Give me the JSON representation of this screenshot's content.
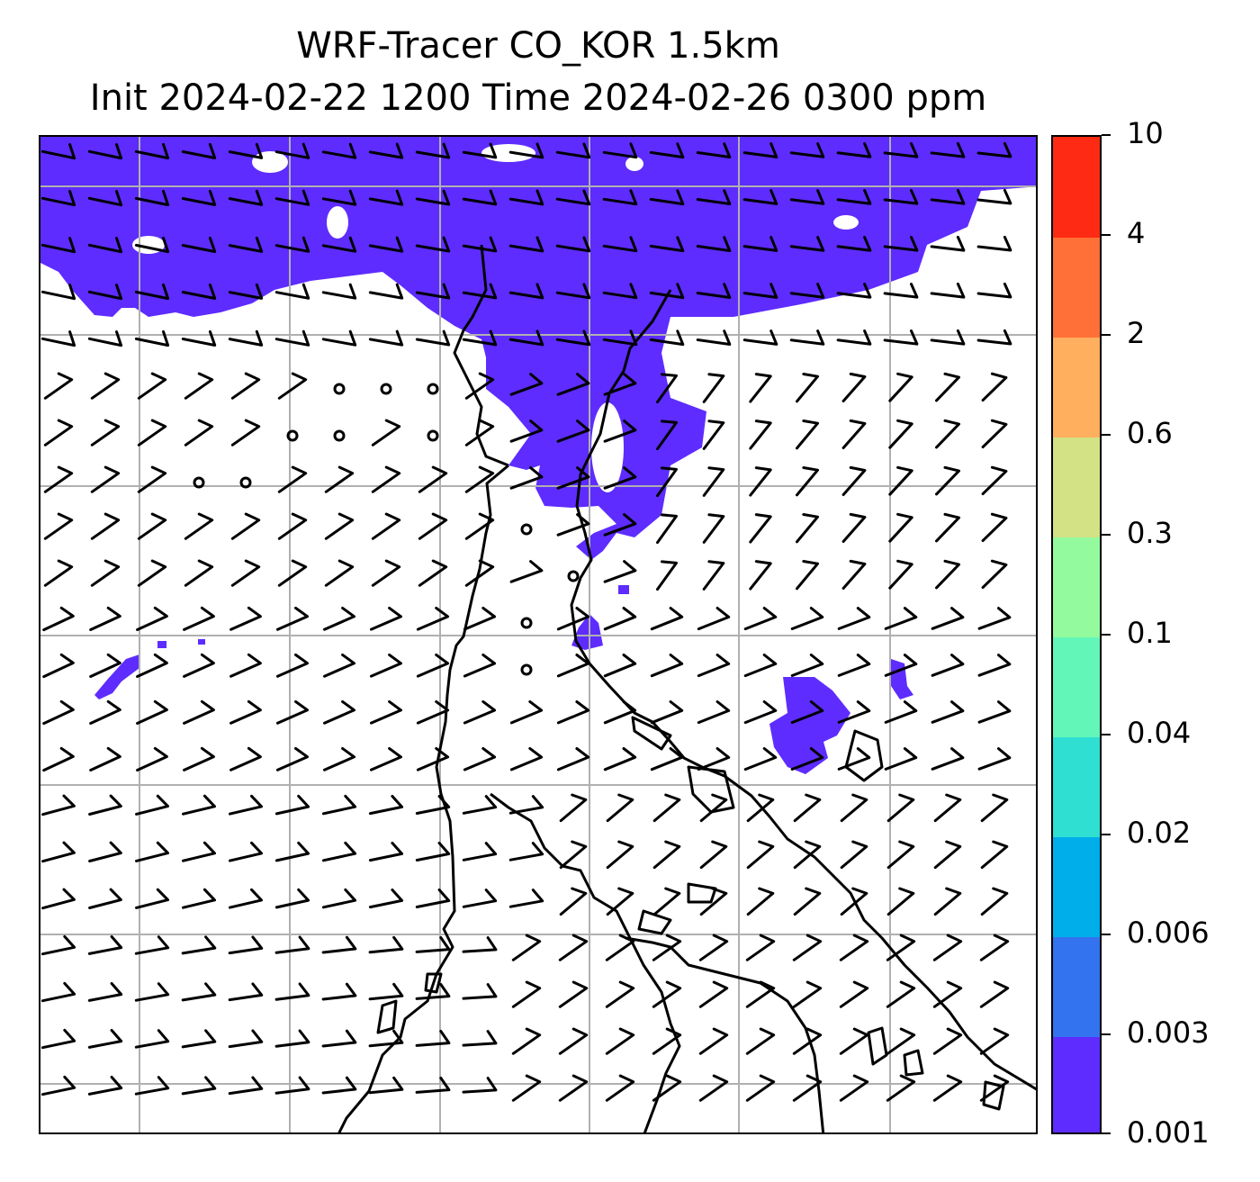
{
  "figure": {
    "title_line_1": "WRF-Tracer CO_KOR 1.5km",
    "title_line_2": "Init 2024-02-22 1200 Time 2024-02-26 0300 ppm"
  },
  "colorbar": {
    "levels": [
      "0.001",
      "0.003",
      "0.006",
      "0.02",
      "0.04",
      "0.1",
      "0.3",
      "0.6",
      "2",
      "4",
      "10"
    ],
    "colors": [
      "#5e2cff",
      "#3373ef",
      "#00aeea",
      "#2edfd2",
      "#62f7b9",
      "#93fb9d",
      "#d2e285",
      "#ffaf5d",
      "#ff7038",
      "#ff2a13"
    ]
  },
  "map": {
    "background": "#ffffff",
    "tracer_fill_color": "#5e2cff",
    "gridline_color": "#b0b0b0",
    "coastline_color": "#000000",
    "wind_barbs": "black",
    "calm_wind_marker": "circle"
  }
}
